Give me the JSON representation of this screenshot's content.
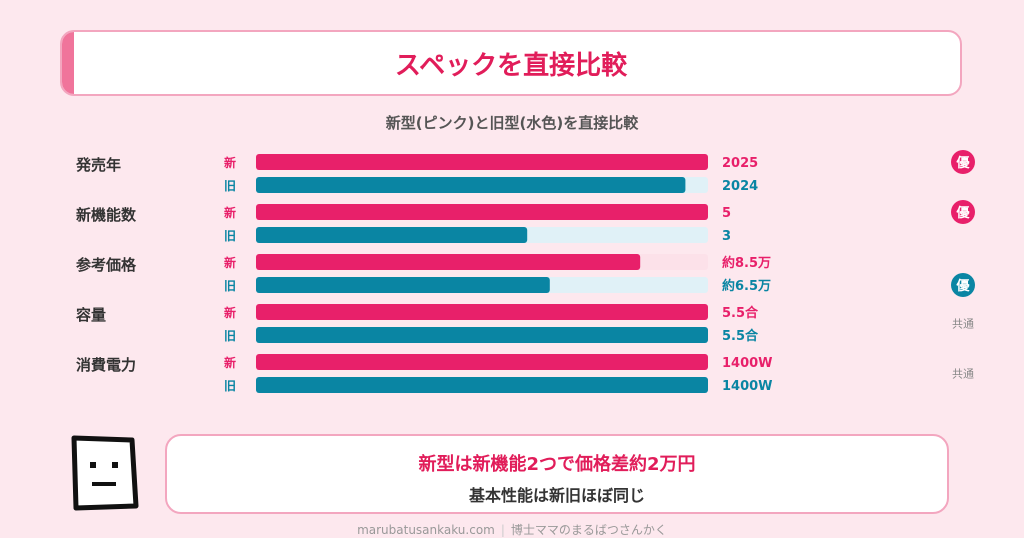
{
  "title": "スペックを直接比較",
  "subtitle": "新型(ピンク)と旧型(水色)を直接比較",
  "colors": {
    "new": "#e8206a",
    "old": "#0a85a3",
    "new_track": "#fce1e9",
    "old_track": "#e0f1f7",
    "background": "#fde8ee"
  },
  "chart_data": {
    "type": "bar",
    "orientation": "horizontal",
    "series_labels": {
      "new": "新",
      "old": "旧"
    },
    "categories": [
      "発売年",
      "新機能数",
      "参考価格",
      "容量",
      "消費電力"
    ],
    "rows": [
      {
        "category": "発売年",
        "new": {
          "fill": 1.0,
          "label": "2025"
        },
        "old": {
          "fill": 0.95,
          "label": "2024"
        },
        "badge": {
          "type": "win",
          "side": "new",
          "text": "優"
        }
      },
      {
        "category": "新機能数",
        "new": {
          "fill": 1.0,
          "label": "5"
        },
        "old": {
          "fill": 0.6,
          "label": "3"
        },
        "badge": {
          "type": "win",
          "side": "new",
          "text": "優"
        }
      },
      {
        "category": "参考価格",
        "new": {
          "fill": 0.85,
          "label": "約8.5万"
        },
        "old": {
          "fill": 0.65,
          "label": "約6.5万"
        },
        "badge": {
          "type": "win",
          "side": "old",
          "text": "優"
        }
      },
      {
        "category": "容量",
        "new": {
          "fill": 1.0,
          "label": "5.5合"
        },
        "old": {
          "fill": 1.0,
          "label": "5.5合"
        },
        "badge": {
          "type": "same",
          "text": "共通"
        }
      },
      {
        "category": "消費電力",
        "new": {
          "fill": 1.0,
          "label": "1400W"
        },
        "old": {
          "fill": 1.0,
          "label": "1400W"
        },
        "badge": {
          "type": "same",
          "text": "共通"
        }
      }
    ]
  },
  "summary": {
    "main": "新型は新機能2つで価格差約2万円",
    "sub": "基本性能は新旧ほぼ同じ"
  },
  "footer": {
    "site": "marubatusankaku.com",
    "author": "博士ママのまるばつさんかく"
  }
}
